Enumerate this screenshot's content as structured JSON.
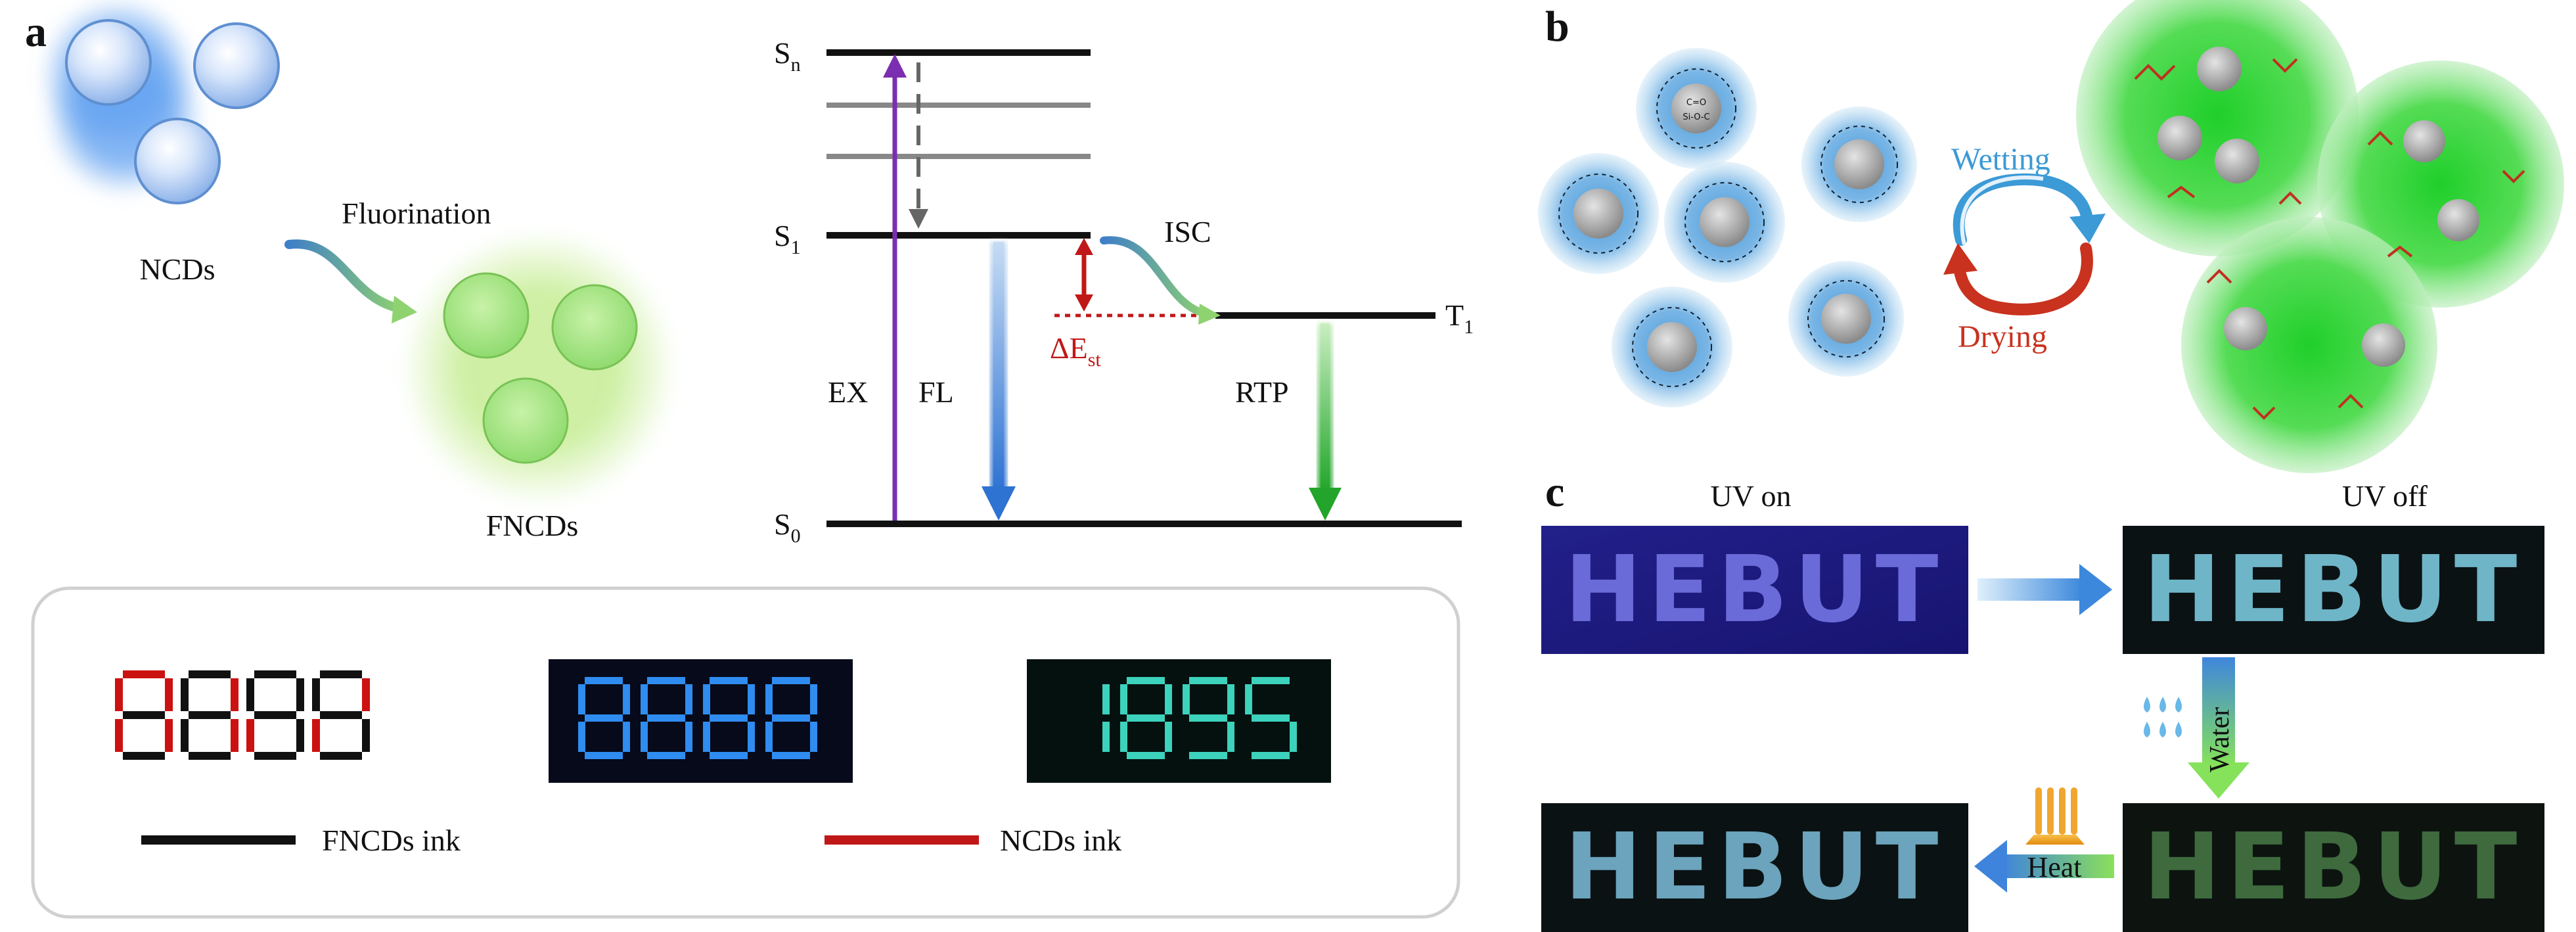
{
  "panels": {
    "a": "a",
    "b": "b",
    "c": "c"
  },
  "panel_a": {
    "ncds_label": "NCDs",
    "fluorination_label": "Fluorination",
    "fncds_label": "FNCDs",
    "energy": {
      "sn": "S",
      "sn_sub": "n",
      "s1": "S",
      "s1_sub": "1",
      "s0": "S",
      "s0_sub": "0",
      "t1": "T",
      "t1_sub": "1",
      "ex": "EX",
      "fl": "FL",
      "isc": "ISC",
      "rtp": "RTP",
      "delta_e": "ΔE",
      "delta_e_sub": "st"
    },
    "ink_panel": {
      "display1": "8888",
      "display2": "8888",
      "display3": "1895",
      "legend_fncds": "FNCDs ink",
      "legend_ncds": "NCDs ink"
    }
  },
  "panel_b": {
    "wetting": "Wetting",
    "drying": "Drying",
    "core_label_1": "C=O",
    "core_label_2": "Si-O-C"
  },
  "panel_c": {
    "uv_on": "UV on",
    "uv_off": "UV off",
    "hebut": "HEBUT",
    "water": "Water",
    "heat": "Heat"
  },
  "colors": {
    "ex_arrow": "#7b2fb0",
    "fl_arrow": "#3a7fd8",
    "rtp_arrow": "#33b039",
    "delta_e": "#c01818",
    "wetting": "#3c9ad6",
    "drying": "#c8321e",
    "ncd_blue": "#9fc4f2",
    "fncd_green": "#8bd96a"
  }
}
